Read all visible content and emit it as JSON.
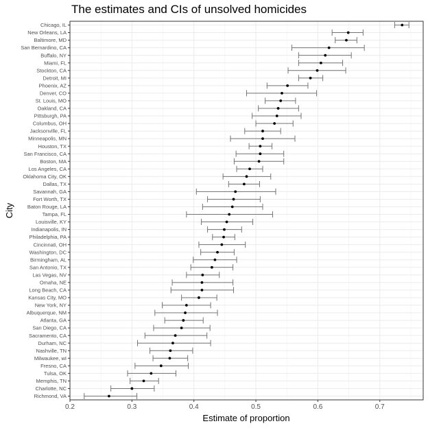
{
  "chart_data": {
    "type": "scatter",
    "title": "The estimates and CIs of unsolved homicides",
    "xlabel": "Estimate of proportion",
    "ylabel": "City",
    "xlim": [
      0.2,
      0.77
    ],
    "x_ticks": [
      0.2,
      0.3,
      0.4,
      0.5,
      0.6,
      0.7
    ],
    "x_tick_labels": [
      "0.2",
      "0.3",
      "0.4",
      "0.5",
      "0.6",
      "0.7"
    ],
    "grid": true,
    "legend": "none",
    "points": [
      {
        "city": "Chicago, IL",
        "estimate": 0.736,
        "lower": 0.724,
        "upper": 0.747
      },
      {
        "city": "New Orleans, LA",
        "estimate": 0.649,
        "lower": 0.623,
        "upper": 0.673
      },
      {
        "city": "Baltimore, MD",
        "estimate": 0.646,
        "lower": 0.628,
        "upper": 0.663
      },
      {
        "city": "San Bernardino, CA",
        "estimate": 0.618,
        "lower": 0.558,
        "upper": 0.675
      },
      {
        "city": "Buffalo, NY",
        "estimate": 0.612,
        "lower": 0.569,
        "upper": 0.654
      },
      {
        "city": "Miami, FL",
        "estimate": 0.605,
        "lower": 0.569,
        "upper": 0.64
      },
      {
        "city": "Stockton, CA",
        "estimate": 0.599,
        "lower": 0.552,
        "upper": 0.645
      },
      {
        "city": "Detroit, MI",
        "estimate": 0.588,
        "lower": 0.569,
        "upper": 0.608
      },
      {
        "city": "Phoenix, AZ",
        "estimate": 0.551,
        "lower": 0.518,
        "upper": 0.584
      },
      {
        "city": "Denver, CO",
        "estimate": 0.542,
        "lower": 0.485,
        "upper": 0.598
      },
      {
        "city": "St. Louis, MO",
        "estimate": 0.54,
        "lower": 0.515,
        "upper": 0.564
      },
      {
        "city": "Oakland, CA",
        "estimate": 0.536,
        "lower": 0.504,
        "upper": 0.569
      },
      {
        "city": "Pittsburgh, PA",
        "estimate": 0.534,
        "lower": 0.494,
        "upper": 0.573
      },
      {
        "city": "Columbus, OH",
        "estimate": 0.53,
        "lower": 0.5,
        "upper": 0.56
      },
      {
        "city": "Jacksonville, FL",
        "estimate": 0.511,
        "lower": 0.482,
        "upper": 0.54
      },
      {
        "city": "Minneapolis, MN",
        "estimate": 0.511,
        "lower": 0.459,
        "upper": 0.563
      },
      {
        "city": "Houston, TX",
        "estimate": 0.507,
        "lower": 0.489,
        "upper": 0.526
      },
      {
        "city": "San Francisco, CA",
        "estimate": 0.507,
        "lower": 0.468,
        "upper": 0.545
      },
      {
        "city": "Boston, MA",
        "estimate": 0.505,
        "lower": 0.465,
        "upper": 0.545
      },
      {
        "city": "Los Angeles, CA",
        "estimate": 0.49,
        "lower": 0.469,
        "upper": 0.511
      },
      {
        "city": "Oklahoma City, OK",
        "estimate": 0.485,
        "lower": 0.447,
        "upper": 0.524
      },
      {
        "city": "Dallas, TX",
        "estimate": 0.481,
        "lower": 0.456,
        "upper": 0.506
      },
      {
        "city": "Savannah, GA",
        "estimate": 0.467,
        "lower": 0.404,
        "upper": 0.532
      },
      {
        "city": "Fort Worth, TX",
        "estimate": 0.464,
        "lower": 0.422,
        "upper": 0.507
      },
      {
        "city": "Baton Rouge, LA",
        "estimate": 0.462,
        "lower": 0.414,
        "upper": 0.511
      },
      {
        "city": "Tampa, FL",
        "estimate": 0.457,
        "lower": 0.388,
        "upper": 0.527
      },
      {
        "city": "Louisville, KY",
        "estimate": 0.453,
        "lower": 0.412,
        "upper": 0.495
      },
      {
        "city": "Indianapolis, IN",
        "estimate": 0.449,
        "lower": 0.422,
        "upper": 0.477
      },
      {
        "city": "Philadelphia, PA",
        "estimate": 0.448,
        "lower": 0.43,
        "upper": 0.466
      },
      {
        "city": "Cincinnati, OH",
        "estimate": 0.445,
        "lower": 0.408,
        "upper": 0.483
      },
      {
        "city": "Washington, DC",
        "estimate": 0.438,
        "lower": 0.411,
        "upper": 0.465
      },
      {
        "city": "Birmingham, AL",
        "estimate": 0.434,
        "lower": 0.399,
        "upper": 0.469
      },
      {
        "city": "San Antonio, TX",
        "estimate": 0.429,
        "lower": 0.395,
        "upper": 0.463
      },
      {
        "city": "Las Vegas, NV",
        "estimate": 0.414,
        "lower": 0.388,
        "upper": 0.441
      },
      {
        "city": "Omaha, NE",
        "estimate": 0.413,
        "lower": 0.365,
        "upper": 0.463
      },
      {
        "city": "Long Beach, CA",
        "estimate": 0.413,
        "lower": 0.363,
        "upper": 0.464
      },
      {
        "city": "Kansas City, MO",
        "estimate": 0.408,
        "lower": 0.38,
        "upper": 0.437
      },
      {
        "city": "New York, NY",
        "estimate": 0.388,
        "lower": 0.349,
        "upper": 0.427
      },
      {
        "city": "Albuquerque, NM",
        "estimate": 0.386,
        "lower": 0.337,
        "upper": 0.438
      },
      {
        "city": "Atlanta, GA",
        "estimate": 0.383,
        "lower": 0.353,
        "upper": 0.415
      },
      {
        "city": "San Diego, CA",
        "estimate": 0.38,
        "lower": 0.335,
        "upper": 0.426
      },
      {
        "city": "Sacramento, CA",
        "estimate": 0.37,
        "lower": 0.321,
        "upper": 0.421
      },
      {
        "city": "Durham, NC",
        "estimate": 0.366,
        "lower": 0.309,
        "upper": 0.427
      },
      {
        "city": "Nashville, TN",
        "estimate": 0.362,
        "lower": 0.329,
        "upper": 0.398
      },
      {
        "city": "Milwaukee, wI",
        "estimate": 0.361,
        "lower": 0.334,
        "upper": 0.39
      },
      {
        "city": "Fresno, CA",
        "estimate": 0.347,
        "lower": 0.305,
        "upper": 0.391
      },
      {
        "city": "Tulsa, OK",
        "estimate": 0.331,
        "lower": 0.293,
        "upper": 0.371
      },
      {
        "city": "Memphis, TN",
        "estimate": 0.319,
        "lower": 0.297,
        "upper": 0.343
      },
      {
        "city": "Charlotte, NC",
        "estimate": 0.3,
        "lower": 0.266,
        "upper": 0.336
      },
      {
        "city": "Richmond, VA",
        "estimate": 0.263,
        "lower": 0.223,
        "upper": 0.308
      }
    ]
  }
}
